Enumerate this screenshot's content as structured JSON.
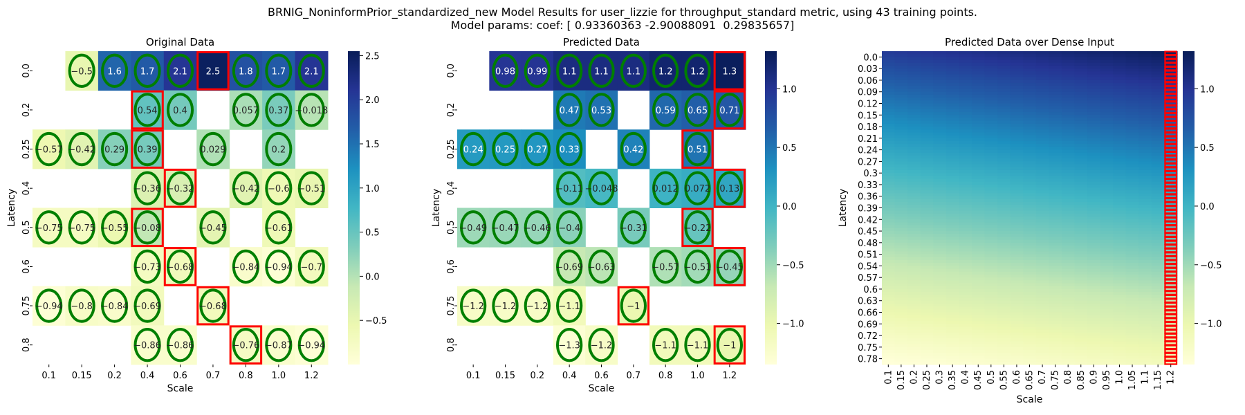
{
  "figure": {
    "title_line1": "BRNIG_NoninformPrior_standardized_new Model Results for user_lizzie for throughput_standard metric, using 43 training points.",
    "title_line2": "Model params: coef: [ 0.93360363 -2.90088091  0.29835657]"
  },
  "colors": {
    "colormap": [
      "#ffffd9",
      "#edf8b1",
      "#c7e9b4",
      "#7fcdbb",
      "#41b6c4",
      "#1d91c0",
      "#225ea8",
      "#253494",
      "#081d58"
    ],
    "circle": "#007f00",
    "box": "#ff0000"
  },
  "chart_data": [
    {
      "type": "heatmap",
      "title": "Original Data",
      "xlabel": "Scale",
      "ylabel": "Latency",
      "x": [
        "0.1",
        "0.15",
        "0.2",
        "0.4",
        "0.6",
        "0.7",
        "0.8",
        "1.0",
        "1.2"
      ],
      "y": [
        "0.0",
        "0.2",
        "0.25",
        "0.4",
        "0.5",
        "0.6",
        "0.75",
        "0.8"
      ],
      "values": [
        [
          null,
          -0.5,
          1.6,
          1.7,
          2.1,
          2.5,
          1.8,
          1.7,
          2.1
        ],
        [
          null,
          null,
          null,
          0.54,
          0.4,
          null,
          0.057,
          0.37,
          -0.018
        ],
        [
          -0.57,
          -0.42,
          0.29,
          0.39,
          null,
          0.029,
          null,
          0.2,
          null
        ],
        [
          null,
          null,
          null,
          -0.36,
          -0.32,
          null,
          -0.42,
          -0.6,
          -0.51
        ],
        [
          -0.75,
          -0.75,
          -0.55,
          -0.08,
          null,
          -0.45,
          null,
          -0.61,
          null
        ],
        [
          null,
          null,
          null,
          -0.73,
          -0.68,
          null,
          -0.84,
          -0.94,
          -0.7
        ],
        [
          -0.94,
          -0.8,
          -0.84,
          -0.69,
          null,
          -0.68,
          null,
          null,
          null
        ],
        [
          null,
          null,
          null,
          -0.86,
          -0.86,
          null,
          -0.76,
          -0.87,
          -0.94
        ]
      ],
      "circled": [
        [
          0,
          1
        ],
        [
          0,
          2
        ],
        [
          0,
          3
        ],
        [
          0,
          4
        ],
        [
          0,
          6
        ],
        [
          0,
          7
        ],
        [
          0,
          8
        ],
        [
          1,
          3
        ],
        [
          1,
          4
        ],
        [
          1,
          6
        ],
        [
          1,
          7
        ],
        [
          1,
          8
        ],
        [
          2,
          0
        ],
        [
          2,
          1
        ],
        [
          2,
          2
        ],
        [
          2,
          3
        ],
        [
          2,
          5
        ],
        [
          2,
          7
        ],
        [
          3,
          3
        ],
        [
          3,
          4
        ],
        [
          3,
          6
        ],
        [
          3,
          7
        ],
        [
          3,
          8
        ],
        [
          4,
          0
        ],
        [
          4,
          1
        ],
        [
          4,
          2
        ],
        [
          4,
          3
        ],
        [
          4,
          5
        ],
        [
          4,
          7
        ],
        [
          5,
          3
        ],
        [
          5,
          4
        ],
        [
          5,
          6
        ],
        [
          5,
          7
        ],
        [
          5,
          8
        ],
        [
          6,
          0
        ],
        [
          6,
          1
        ],
        [
          6,
          2
        ],
        [
          6,
          3
        ],
        [
          6,
          5
        ],
        [
          7,
          3
        ],
        [
          7,
          4
        ],
        [
          7,
          6
        ],
        [
          7,
          7
        ],
        [
          7,
          8
        ]
      ],
      "boxed": [
        [
          0,
          5
        ],
        [
          1,
          3
        ],
        [
          2,
          3
        ],
        [
          3,
          4
        ],
        [
          4,
          3
        ],
        [
          5,
          4
        ],
        [
          6,
          5
        ],
        [
          7,
          6
        ]
      ],
      "vmin": -1.0,
      "vmax": 2.55,
      "colorbar_ticks": [
        -0.5,
        0.0,
        0.5,
        1.0,
        1.5,
        2.0,
        2.5
      ],
      "colorbar_tick_labels": [
        "−0.5",
        "0.0",
        "0.5",
        "1.0",
        "1.5",
        "2.0",
        "2.5"
      ]
    },
    {
      "type": "heatmap",
      "title": "Predicted Data",
      "xlabel": "Scale",
      "ylabel": "Latency",
      "x": [
        "0.1",
        "0.15",
        "0.2",
        "0.4",
        "0.6",
        "0.7",
        "0.8",
        "1.0",
        "1.2"
      ],
      "y": [
        "0.0",
        "0.2",
        "0.25",
        "0.4",
        "0.5",
        "0.6",
        "0.75",
        "0.8"
      ],
      "values": [
        [
          null,
          0.98,
          0.99,
          1.1,
          1.1,
          1.1,
          1.2,
          1.2,
          1.3
        ],
        [
          null,
          null,
          null,
          0.47,
          0.53,
          null,
          0.59,
          0.65,
          0.71
        ],
        [
          0.24,
          0.25,
          0.27,
          0.33,
          null,
          0.42,
          null,
          0.51,
          null
        ],
        [
          null,
          null,
          null,
          -0.11,
          -0.048,
          null,
          0.012,
          0.072,
          0.13
        ],
        [
          -0.49,
          -0.47,
          -0.46,
          -0.4,
          null,
          -0.31,
          null,
          -0.22,
          null
        ],
        [
          null,
          null,
          null,
          -0.69,
          -0.63,
          null,
          -0.57,
          -0.51,
          -0.45
        ],
        [
          -1.2,
          -1.2,
          -1.2,
          -1.1,
          null,
          -1,
          null,
          null,
          null
        ],
        [
          null,
          null,
          null,
          -1.3,
          -1.2,
          null,
          -1.1,
          -1.1,
          -1
        ]
      ],
      "circled": [
        [
          0,
          1
        ],
        [
          0,
          2
        ],
        [
          0,
          3
        ],
        [
          0,
          4
        ],
        [
          0,
          5
        ],
        [
          0,
          6
        ],
        [
          0,
          7
        ],
        [
          1,
          3
        ],
        [
          1,
          4
        ],
        [
          1,
          6
        ],
        [
          1,
          7
        ],
        [
          1,
          8
        ],
        [
          2,
          0
        ],
        [
          2,
          1
        ],
        [
          2,
          2
        ],
        [
          2,
          3
        ],
        [
          2,
          5
        ],
        [
          2,
          7
        ],
        [
          3,
          3
        ],
        [
          3,
          4
        ],
        [
          3,
          6
        ],
        [
          3,
          7
        ],
        [
          3,
          8
        ],
        [
          4,
          0
        ],
        [
          4,
          1
        ],
        [
          4,
          2
        ],
        [
          4,
          3
        ],
        [
          4,
          5
        ],
        [
          4,
          7
        ],
        [
          5,
          3
        ],
        [
          5,
          4
        ],
        [
          5,
          6
        ],
        [
          5,
          7
        ],
        [
          5,
          8
        ],
        [
          6,
          0
        ],
        [
          6,
          1
        ],
        [
          6,
          2
        ],
        [
          6,
          3
        ],
        [
          6,
          5
        ],
        [
          7,
          3
        ],
        [
          7,
          4
        ],
        [
          7,
          6
        ],
        [
          7,
          7
        ],
        [
          7,
          8
        ]
      ],
      "boxed": [
        [
          0,
          8
        ],
        [
          1,
          8
        ],
        [
          2,
          7
        ],
        [
          3,
          8
        ],
        [
          4,
          7
        ],
        [
          5,
          8
        ],
        [
          6,
          5
        ],
        [
          7,
          8
        ]
      ],
      "vmin": -1.35,
      "vmax": 1.32,
      "colorbar_ticks": [
        -1.0,
        -0.5,
        0.0,
        0.5,
        1.0
      ],
      "colorbar_tick_labels": [
        "−1.0",
        "−0.5",
        "0.0",
        "0.5",
        "1.0"
      ]
    },
    {
      "type": "heatmap",
      "title": "Predicted Data over Dense Input",
      "xlabel": "Scale",
      "ylabel": "Latency",
      "x": [
        "0.1",
        "0.15",
        "0.2",
        "0.25",
        "0.3",
        "0.35",
        "0.4",
        "0.45",
        "0.5",
        "0.55",
        "0.6",
        "0.65",
        "0.7",
        "0.75",
        "0.8",
        "0.85",
        "0.9",
        "0.95",
        "1.0",
        "1.05",
        "1.1",
        "1.15",
        "1.2"
      ],
      "y": [
        "0.0",
        "0.03",
        "0.06",
        "0.09",
        "0.12",
        "0.15",
        "0.18",
        "0.21",
        "0.24",
        "0.27",
        "0.3",
        "0.33",
        "0.36",
        "0.39",
        "0.42",
        "0.45",
        "0.48",
        "0.51",
        "0.54",
        "0.57",
        "0.6",
        "0.63",
        "0.66",
        "0.69",
        "0.72",
        "0.75",
        "0.78"
      ],
      "value_at_top_left": 0.93,
      "value_at_top_right": 1.3,
      "value_at_bottom_left": -1.35,
      "value_at_bottom_right": -1.1,
      "boxed_column": "1.2",
      "vmin": -1.35,
      "vmax": 1.32,
      "colorbar_ticks": [
        -1.0,
        -0.5,
        0.0,
        0.5,
        1.0
      ],
      "colorbar_tick_labels": [
        "−1.0",
        "−0.5",
        "0.0",
        "0.5",
        "1.0"
      ]
    }
  ]
}
